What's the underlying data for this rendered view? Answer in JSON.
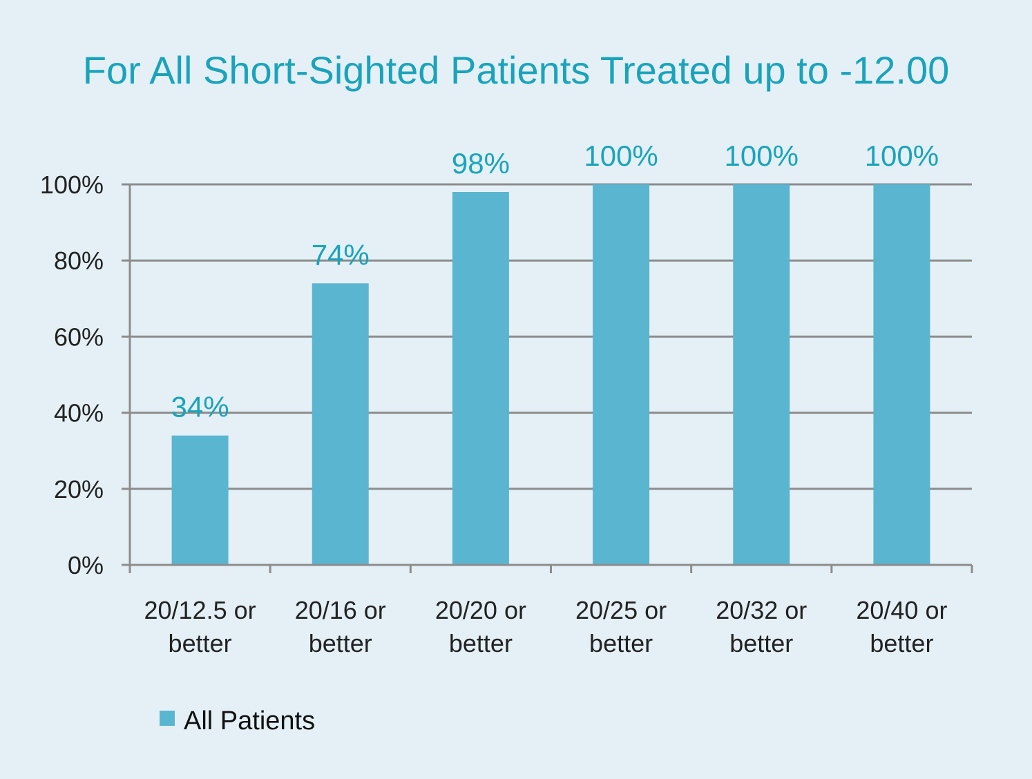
{
  "chart_data": {
    "type": "bar",
    "title": "For All Short-Sighted Patients Treated up to -12.00",
    "xlabel": "",
    "ylabel": "",
    "categories": [
      [
        "20/12.5 or",
        "better"
      ],
      [
        "20/16 or",
        "better"
      ],
      [
        "20/20 or",
        "better"
      ],
      [
        "20/25 or",
        "better"
      ],
      [
        "20/32 or",
        "better"
      ],
      [
        "20/40 or",
        "better"
      ]
    ],
    "series": [
      {
        "name": "All Patients",
        "values": [
          34,
          74,
          98,
          100,
          100,
          100
        ],
        "color": "#5ab5d0"
      }
    ],
    "data_labels": [
      "34%",
      "74%",
      "98%",
      "100%",
      "100%",
      "100%"
    ],
    "ylim": [
      0,
      100
    ],
    "yticks": [
      0,
      20,
      40,
      60,
      80,
      100
    ],
    "ytick_labels": [
      "0%",
      "20%",
      "40%",
      "60%",
      "80%",
      "100%"
    ],
    "grid": true,
    "legend_position": "bottom-left"
  },
  "colors": {
    "background": "#e4f0f6",
    "title": "#1aa3bb",
    "data_label": "#1aa3bb",
    "grid": "#8c8c8c",
    "axis": "#8c8c8c"
  }
}
